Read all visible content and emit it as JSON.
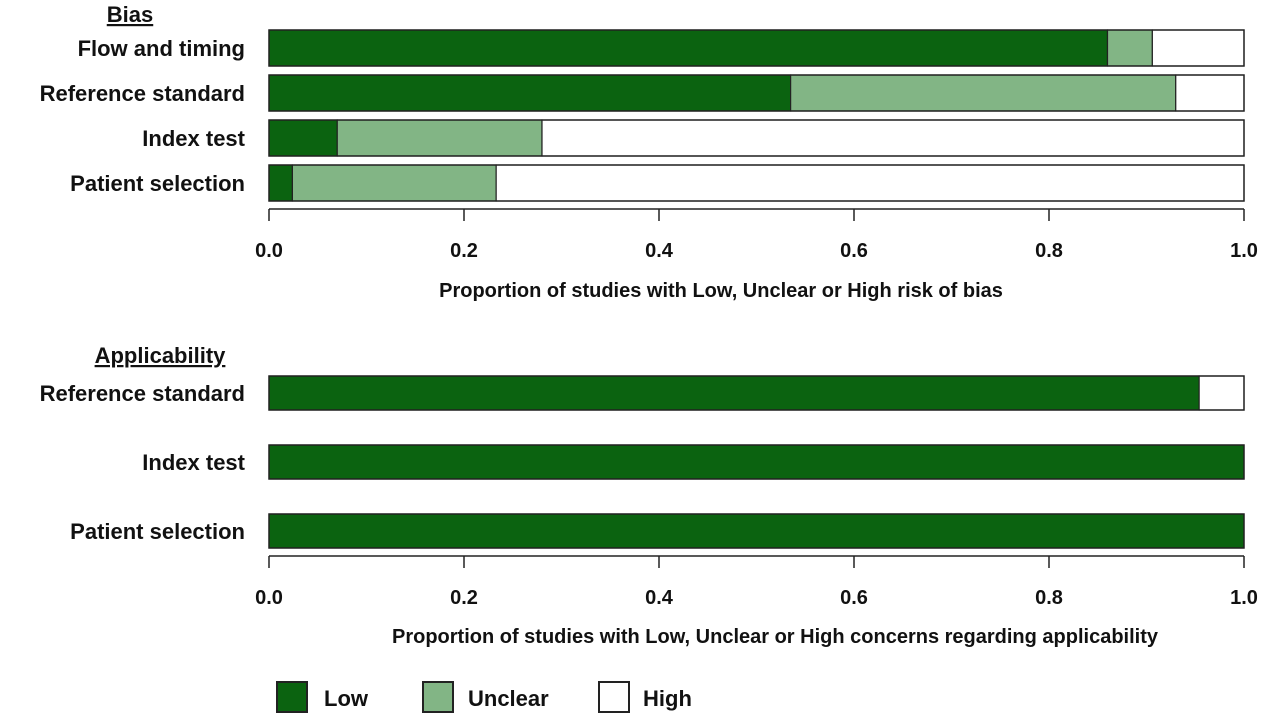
{
  "chart_data": [
    {
      "type": "bar",
      "orientation": "horizontal",
      "stacked": true,
      "title": "Bias",
      "categories": [
        "Flow and timing",
        "Reference standard",
        "Index test",
        "Patient selection"
      ],
      "series": [
        {
          "name": "Low",
          "values": [
            0.86,
            0.535,
            0.07,
            0.024
          ]
        },
        {
          "name": "Unclear",
          "values": [
            0.046,
            0.395,
            0.21,
            0.209
          ]
        },
        {
          "name": "High",
          "values": [
            0.094,
            0.07,
            0.72,
            0.767
          ]
        }
      ],
      "xlabel": "Proportion of studies with Low, Unclear or High risk of bias",
      "xlim": [
        0,
        1
      ],
      "xticks": [
        "0.0",
        "0.2",
        "0.4",
        "0.6",
        "0.8",
        "1.0"
      ],
      "grid": false
    },
    {
      "type": "bar",
      "orientation": "horizontal",
      "stacked": true,
      "title": "Applicability",
      "categories": [
        "Reference standard",
        "Index test",
        "Patient selection"
      ],
      "series": [
        {
          "name": "Low",
          "values": [
            0.954,
            1.0,
            1.0
          ]
        },
        {
          "name": "Unclear",
          "values": [
            0,
            0,
            0
          ]
        },
        {
          "name": "High",
          "values": [
            0.046,
            0,
            0
          ]
        }
      ],
      "xlabel": "Proportion of studies with Low, Unclear or High concerns regarding applicability",
      "xlim": [
        0,
        1
      ],
      "xticks": [
        "0.0",
        "0.2",
        "0.4",
        "0.6",
        "0.8",
        "1.0"
      ],
      "grid": false
    }
  ],
  "legend": {
    "placement": "bottom-left",
    "items": [
      {
        "label": "Low",
        "color": "#0b6310"
      },
      {
        "label": "Unclear",
        "color": "#82b585"
      },
      {
        "label": "High",
        "color": "#ffffff"
      }
    ]
  },
  "colors": {
    "Low": "#0b6310",
    "Unclear": "#82b585",
    "High": "#ffffff",
    "outline": "#222222"
  }
}
